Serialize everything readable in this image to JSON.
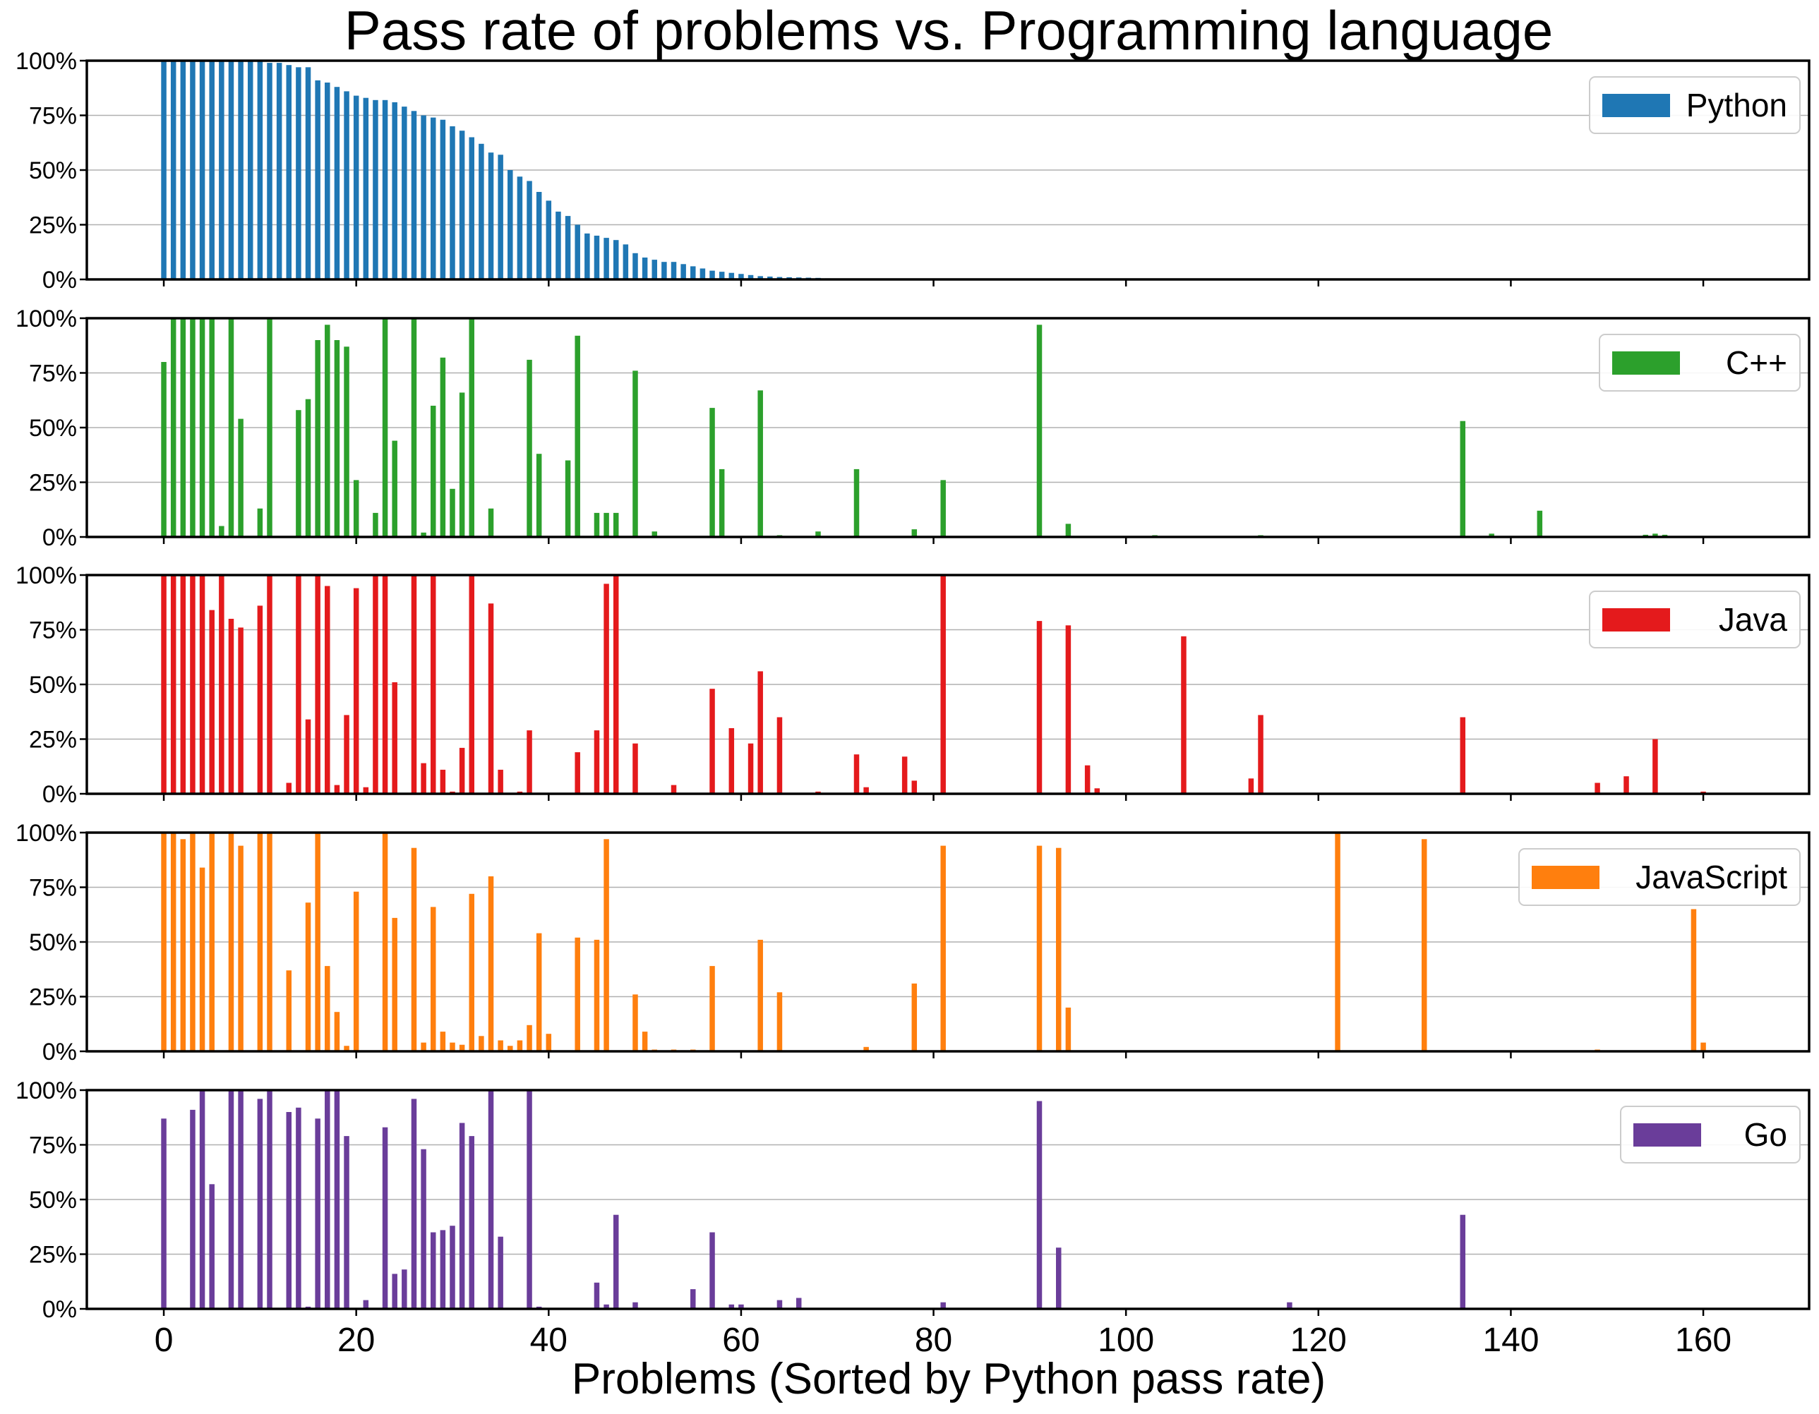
{
  "chart_data": {
    "type": "bar",
    "title": "Pass rate of problems vs. Programming language",
    "xlabel": "Problems (Sorted by Python pass rate)",
    "xlim": [
      -8,
      171
    ],
    "ylim": [
      0,
      100
    ],
    "x_ticks": [
      "0",
      "20",
      "40",
      "60",
      "80",
      "100",
      "120",
      "140",
      "160"
    ],
    "y_ticks": [
      "0%",
      "25%",
      "50%",
      "75%",
      "100%"
    ],
    "grid": "horizontal",
    "legend_position": "upper right",
    "series": [
      {
        "name": "Python",
        "color": "#1f77b4",
        "points": [
          [
            0,
            100
          ],
          [
            1,
            100
          ],
          [
            2,
            100
          ],
          [
            3,
            100
          ],
          [
            4,
            100
          ],
          [
            5,
            100
          ],
          [
            6,
            100
          ],
          [
            7,
            100
          ],
          [
            8,
            100
          ],
          [
            9,
            100
          ],
          [
            10,
            100
          ],
          [
            11,
            99
          ],
          [
            12,
            99
          ],
          [
            13,
            98
          ],
          [
            14,
            97
          ],
          [
            15,
            97
          ],
          [
            16,
            91
          ],
          [
            17,
            90
          ],
          [
            18,
            88
          ],
          [
            19,
            86
          ],
          [
            20,
            84
          ],
          [
            21,
            83
          ],
          [
            22,
            82
          ],
          [
            23,
            82
          ],
          [
            24,
            81
          ],
          [
            25,
            79
          ],
          [
            26,
            77
          ],
          [
            27,
            75
          ],
          [
            28,
            74
          ],
          [
            29,
            73
          ],
          [
            30,
            70
          ],
          [
            31,
            68
          ],
          [
            32,
            65
          ],
          [
            33,
            62
          ],
          [
            34,
            58
          ],
          [
            35,
            57
          ],
          [
            36,
            50
          ],
          [
            37,
            47
          ],
          [
            38,
            45
          ],
          [
            39,
            40
          ],
          [
            40,
            36
          ],
          [
            41,
            31
          ],
          [
            42,
            29
          ],
          [
            43,
            25
          ],
          [
            44,
            21
          ],
          [
            45,
            20
          ],
          [
            46,
            19
          ],
          [
            47,
            18
          ],
          [
            48,
            16
          ],
          [
            49,
            12
          ],
          [
            50,
            10
          ],
          [
            51,
            9
          ],
          [
            52,
            8
          ],
          [
            53,
            8
          ],
          [
            54,
            7
          ],
          [
            55,
            6
          ],
          [
            56,
            5
          ],
          [
            57,
            4
          ],
          [
            58,
            3.5
          ],
          [
            59,
            3
          ],
          [
            60,
            2.5
          ],
          [
            61,
            2
          ],
          [
            62,
            1.5
          ],
          [
            63,
            1.3
          ],
          [
            64,
            1.1
          ],
          [
            65,
            1
          ],
          [
            66,
            0.9
          ],
          [
            67,
            0.8
          ],
          [
            68,
            0.7
          ],
          [
            69,
            0.5
          ],
          [
            70,
            0.4
          ],
          [
            71,
            0.3
          ],
          [
            72,
            0.2
          ],
          [
            73,
            0.1
          ]
        ]
      },
      {
        "name": "C++",
        "color": "#2ca02c",
        "points": [
          [
            0,
            80
          ],
          [
            1,
            100
          ],
          [
            2,
            100
          ],
          [
            3,
            100
          ],
          [
            4,
            100
          ],
          [
            5,
            100
          ],
          [
            6,
            5
          ],
          [
            7,
            100
          ],
          [
            8,
            54
          ],
          [
            10,
            13
          ],
          [
            11,
            100
          ],
          [
            14,
            58
          ],
          [
            15,
            63
          ],
          [
            16,
            90
          ],
          [
            17,
            97
          ],
          [
            18,
            90
          ],
          [
            19,
            87
          ],
          [
            20,
            26
          ],
          [
            22,
            11
          ],
          [
            23,
            100
          ],
          [
            24,
            44
          ],
          [
            26,
            100
          ],
          [
            27,
            2
          ],
          [
            28,
            60
          ],
          [
            29,
            82
          ],
          [
            30,
            22
          ],
          [
            31,
            66
          ],
          [
            32,
            100
          ],
          [
            34,
            13
          ],
          [
            38,
            81
          ],
          [
            39,
            38
          ],
          [
            42,
            35
          ],
          [
            43,
            92
          ],
          [
            45,
            11
          ],
          [
            46,
            11
          ],
          [
            47,
            11
          ],
          [
            49,
            76
          ],
          [
            51,
            2.5
          ],
          [
            57,
            59
          ],
          [
            58,
            31
          ],
          [
            62,
            67
          ],
          [
            64,
            0.8
          ],
          [
            68,
            2.5
          ],
          [
            72,
            31
          ],
          [
            78,
            3.5
          ],
          [
            81,
            26
          ],
          [
            91,
            97
          ],
          [
            94,
            6
          ],
          [
            103,
            0.8
          ],
          [
            114,
            0.8
          ],
          [
            135,
            53
          ],
          [
            138,
            1.5
          ],
          [
            143,
            12
          ],
          [
            154,
            1
          ],
          [
            155,
            1.5
          ],
          [
            156,
            1
          ]
        ]
      },
      {
        "name": "Java",
        "color": "#e41a1c",
        "points": [
          [
            0,
            100
          ],
          [
            1,
            100
          ],
          [
            2,
            100
          ],
          [
            3,
            100
          ],
          [
            4,
            100
          ],
          [
            5,
            84
          ],
          [
            6,
            100
          ],
          [
            7,
            80
          ],
          [
            8,
            76
          ],
          [
            10,
            86
          ],
          [
            11,
            100
          ],
          [
            13,
            5
          ],
          [
            14,
            100
          ],
          [
            15,
            34
          ],
          [
            16,
            100
          ],
          [
            17,
            95
          ],
          [
            18,
            4
          ],
          [
            19,
            36
          ],
          [
            20,
            94
          ],
          [
            21,
            3
          ],
          [
            22,
            100
          ],
          [
            23,
            100
          ],
          [
            24,
            51
          ],
          [
            26,
            100
          ],
          [
            27,
            14
          ],
          [
            28,
            100
          ],
          [
            29,
            11
          ],
          [
            30,
            1
          ],
          [
            31,
            21
          ],
          [
            32,
            100
          ],
          [
            34,
            87
          ],
          [
            35,
            11
          ],
          [
            37,
            1
          ],
          [
            38,
            29
          ],
          [
            39,
            0.5
          ],
          [
            43,
            19
          ],
          [
            45,
            29
          ],
          [
            46,
            96
          ],
          [
            47,
            100
          ],
          [
            49,
            23
          ],
          [
            53,
            4
          ],
          [
            57,
            48
          ],
          [
            59,
            30
          ],
          [
            61,
            23
          ],
          [
            62,
            56
          ],
          [
            64,
            35
          ],
          [
            68,
            1
          ],
          [
            72,
            18
          ],
          [
            73,
            3
          ],
          [
            77,
            17
          ],
          [
            78,
            6
          ],
          [
            81,
            100
          ],
          [
            91,
            79
          ],
          [
            92,
            0.5
          ],
          [
            94,
            77
          ],
          [
            96,
            13
          ],
          [
            97,
            2.5
          ],
          [
            106,
            72
          ],
          [
            113,
            7
          ],
          [
            114,
            36
          ],
          [
            135,
            35
          ],
          [
            149,
            5
          ],
          [
            152,
            8
          ],
          [
            153,
            0.5
          ],
          [
            155,
            25
          ],
          [
            160,
            1
          ]
        ]
      },
      {
        "name": "JavaScript",
        "color": "#ff7f0e",
        "points": [
          [
            0,
            100
          ],
          [
            1,
            100
          ],
          [
            2,
            97
          ],
          [
            3,
            100
          ],
          [
            4,
            84
          ],
          [
            5,
            100
          ],
          [
            7,
            100
          ],
          [
            8,
            94
          ],
          [
            10,
            100
          ],
          [
            11,
            100
          ],
          [
            13,
            37
          ],
          [
            15,
            68
          ],
          [
            16,
            100
          ],
          [
            17,
            39
          ],
          [
            18,
            18
          ],
          [
            19,
            2.5
          ],
          [
            20,
            73
          ],
          [
            23,
            100
          ],
          [
            24,
            61
          ],
          [
            26,
            93
          ],
          [
            27,
            4
          ],
          [
            28,
            66
          ],
          [
            29,
            9
          ],
          [
            30,
            4
          ],
          [
            31,
            3
          ],
          [
            32,
            72
          ],
          [
            33,
            7
          ],
          [
            34,
            80
          ],
          [
            35,
            5
          ],
          [
            36,
            2.5
          ],
          [
            37,
            5
          ],
          [
            38,
            12
          ],
          [
            39,
            54
          ],
          [
            40,
            8
          ],
          [
            43,
            52
          ],
          [
            45,
            51
          ],
          [
            46,
            97
          ],
          [
            48,
            0.5
          ],
          [
            49,
            26
          ],
          [
            50,
            9
          ],
          [
            51,
            0.8
          ],
          [
            53,
            0.8
          ],
          [
            54,
            0.5
          ],
          [
            55,
            0.8
          ],
          [
            57,
            39
          ],
          [
            60,
            0.5
          ],
          [
            62,
            51
          ],
          [
            64,
            27
          ],
          [
            73,
            2
          ],
          [
            78,
            31
          ],
          [
            81,
            94
          ],
          [
            91,
            94
          ],
          [
            93,
            93
          ],
          [
            94,
            20
          ],
          [
            122,
            100
          ],
          [
            131,
            97
          ],
          [
            134,
            0.5
          ],
          [
            135,
            0.5
          ],
          [
            149,
            0.8
          ],
          [
            159,
            65
          ],
          [
            160,
            4
          ]
        ]
      },
      {
        "name": "Go",
        "color": "#6a3d9a",
        "points": [
          [
            0,
            87
          ],
          [
            3,
            91
          ],
          [
            4,
            100
          ],
          [
            5,
            57
          ],
          [
            7,
            100
          ],
          [
            8,
            100
          ],
          [
            10,
            96
          ],
          [
            11,
            100
          ],
          [
            13,
            90
          ],
          [
            14,
            92
          ],
          [
            15,
            1
          ],
          [
            16,
            87
          ],
          [
            17,
            100
          ],
          [
            18,
            100
          ],
          [
            19,
            79
          ],
          [
            21,
            4
          ],
          [
            23,
            83
          ],
          [
            24,
            16
          ],
          [
            25,
            18
          ],
          [
            26,
            96
          ],
          [
            27,
            73
          ],
          [
            28,
            35
          ],
          [
            29,
            36
          ],
          [
            30,
            38
          ],
          [
            31,
            85
          ],
          [
            32,
            79
          ],
          [
            34,
            100
          ],
          [
            35,
            33
          ],
          [
            38,
            100
          ],
          [
            39,
            1
          ],
          [
            45,
            12
          ],
          [
            46,
            2
          ],
          [
            47,
            43
          ],
          [
            49,
            3
          ],
          [
            55,
            9
          ],
          [
            57,
            35
          ],
          [
            59,
            2
          ],
          [
            60,
            2
          ],
          [
            64,
            4
          ],
          [
            66,
            5
          ],
          [
            81,
            3
          ],
          [
            91,
            95
          ],
          [
            93,
            28
          ],
          [
            117,
            3
          ],
          [
            135,
            43
          ]
        ]
      }
    ]
  }
}
